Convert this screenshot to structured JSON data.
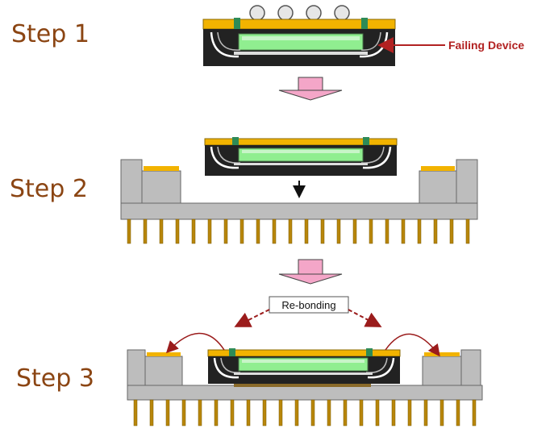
{
  "steps": [
    {
      "label": "Step 1"
    },
    {
      "label": "Step 2"
    },
    {
      "label": "Step 3"
    }
  ],
  "annotations": {
    "failing_device": "Failing Device",
    "re_bonding": "Re-bonding"
  },
  "colors": {
    "step_label": "#8B4513",
    "package_body": "#222222",
    "die": "#90EE90",
    "die_highlight": "#C8F5C8",
    "substrate": "#F2B300",
    "green_via": "#2E8B57",
    "socket_gray": "#BDBDBD",
    "socket_shadow": "#8C8C8C",
    "pin": "#B8860B",
    "arrow_pink": "#F4A6C8",
    "callout_red": "#B22222",
    "rebond_arrow": "#9B1C1C"
  }
}
